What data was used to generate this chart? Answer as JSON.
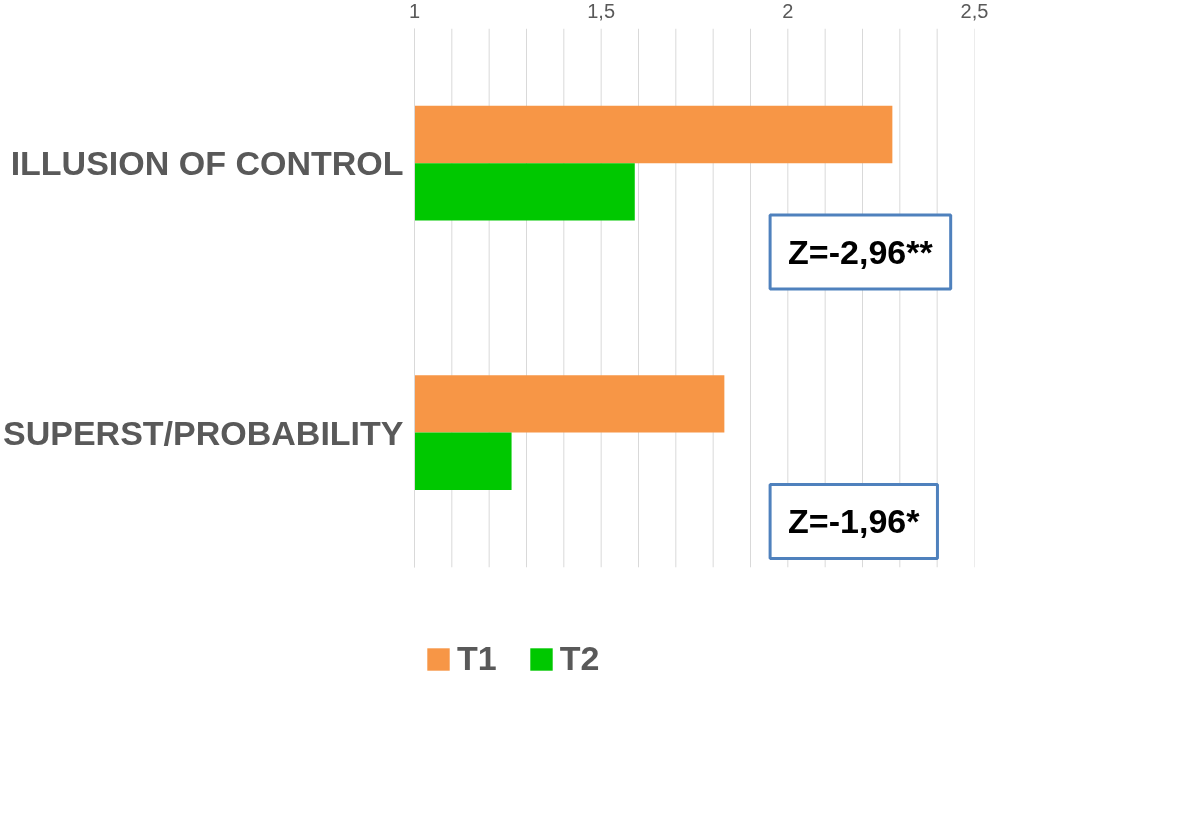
{
  "chart_data": {
    "type": "bar",
    "orientation": "horizontal",
    "categories": [
      "ILLUSION OF CONTROL",
      "SUPERST/PROBABILITY"
    ],
    "series": [
      {
        "name": "T1",
        "color": "#f79646",
        "values": [
          2.28,
          1.83
        ]
      },
      {
        "name": "T2",
        "color": "#00c800",
        "values": [
          1.59,
          1.26
        ]
      }
    ],
    "xlim": [
      1,
      2.5
    ],
    "xticks": [
      1,
      {
        "value": 1.1,
        "label": null
      },
      {
        "value": 1.2,
        "label": null
      },
      {
        "value": 1.3,
        "label": null
      },
      {
        "value": 1.4,
        "label": null
      },
      {
        "value": 1.5,
        "label": "1,5"
      },
      {
        "value": 1.6,
        "label": null
      },
      {
        "value": 1.7,
        "label": null
      },
      {
        "value": 1.8,
        "label": null
      },
      {
        "value": 1.9,
        "label": null
      },
      2,
      {
        "value": 2.1,
        "label": null
      },
      {
        "value": 2.2,
        "label": null
      },
      {
        "value": 2.3,
        "label": null
      },
      {
        "value": 2.4,
        "label": null
      },
      {
        "value": 2.5,
        "label": "2,5"
      }
    ],
    "grid": "x",
    "legend": "bottom",
    "annotations": [
      "Z=-2,96**",
      "Z=-1,96*"
    ]
  }
}
